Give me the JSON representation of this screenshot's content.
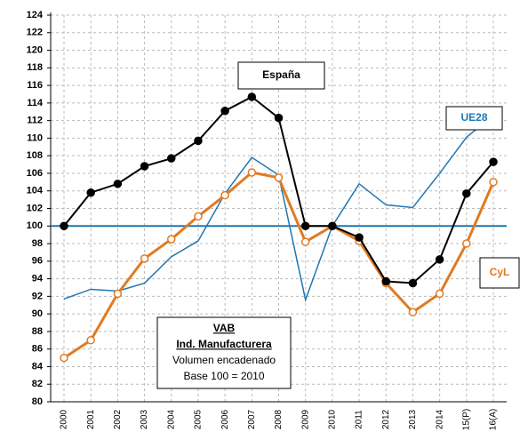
{
  "chart_data": {
    "type": "line",
    "categories": [
      "2000",
      "2001",
      "2002",
      "2003",
      "2004",
      "2005",
      "2006",
      "2007",
      "2008",
      "2009",
      "2010",
      "2011",
      "2012",
      "2013",
      "2014",
      "15(P)",
      "16(A)"
    ],
    "series": [
      {
        "name": "España",
        "color": "#000000",
        "values": [
          100,
          103.8,
          104.8,
          106.8,
          107.7,
          109.7,
          113.1,
          114.7,
          112.3,
          100,
          100,
          98.7,
          93.7,
          93.5,
          96.2,
          103.7,
          107.3
        ]
      },
      {
        "name": "UE28",
        "color": "#1f77b4",
        "values": [
          91.7,
          92.8,
          92.6,
          93.5,
          96.5,
          98.3,
          103.7,
          107.8,
          105.8,
          91.6,
          100,
          104.8,
          102.4,
          102.1,
          106,
          110.1,
          112.6
        ]
      },
      {
        "name": "CyL",
        "color": "#e07b22",
        "values": [
          85,
          87,
          92.3,
          96.3,
          98.5,
          101.1,
          103.5,
          106.1,
          105.5,
          98.2,
          100,
          98.3,
          93.5,
          90.2,
          92.3,
          98,
          105
        ]
      }
    ],
    "reference_line": 100,
    "note_lines": [
      "VAB",
      "Ind. Manufacturera",
      "Volumen encadenado",
      "Base 100 = 2010"
    ],
    "ylim": [
      80,
      124
    ],
    "yticks": [
      80,
      82,
      84,
      86,
      88,
      90,
      92,
      94,
      96,
      98,
      100,
      102,
      104,
      106,
      108,
      110,
      112,
      114,
      116,
      118,
      120,
      122,
      124
    ],
    "grid": true
  }
}
